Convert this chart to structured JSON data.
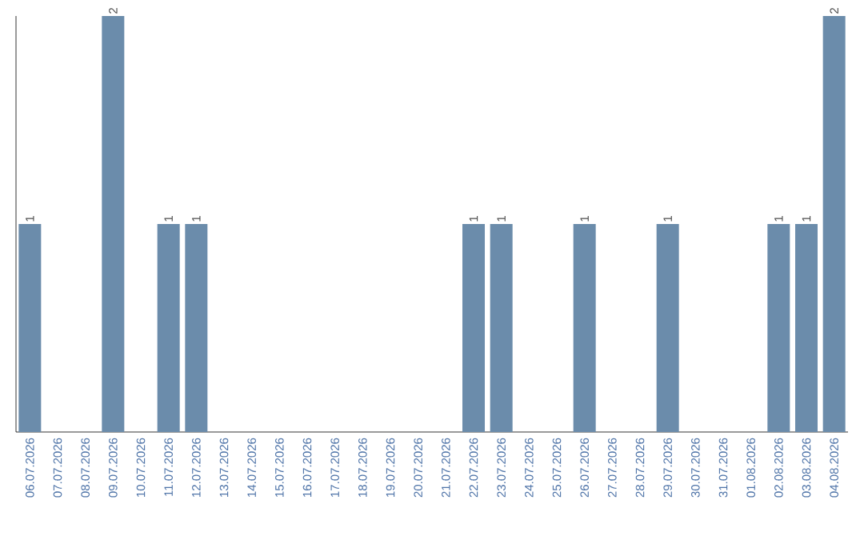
{
  "chart_data": {
    "type": "bar",
    "categories": [
      "06.07.2026",
      "07.07.2026",
      "08.07.2026",
      "09.07.2026",
      "10.07.2026",
      "11.07.2026",
      "12.07.2026",
      "13.07.2026",
      "14.07.2026",
      "15.07.2026",
      "16.07.2026",
      "17.07.2026",
      "18.07.2026",
      "19.07.2026",
      "20.07.2026",
      "21.07.2026",
      "22.07.2026",
      "23.07.2026",
      "24.07.2026",
      "25.07.2026",
      "26.07.2026",
      "27.07.2026",
      "28.07.2026",
      "29.07.2026",
      "30.07.2026",
      "31.07.2026",
      "01.08.2026",
      "02.08.2026",
      "03.08.2026",
      "04.08.2026"
    ],
    "values": [
      1,
      0,
      0,
      2,
      0,
      1,
      1,
      0,
      0,
      0,
      0,
      0,
      0,
      0,
      0,
      0,
      1,
      1,
      0,
      0,
      1,
      0,
      0,
      1,
      0,
      0,
      0,
      1,
      1,
      2
    ],
    "value_labels": [
      "1",
      null,
      null,
      "2",
      null,
      "1",
      "1",
      null,
      null,
      null,
      null,
      null,
      null,
      null,
      null,
      null,
      "1",
      "1",
      null,
      null,
      "1",
      null,
      null,
      "1",
      null,
      null,
      null,
      "1",
      "1",
      "2"
    ],
    "color": "#6b8cab"
  }
}
